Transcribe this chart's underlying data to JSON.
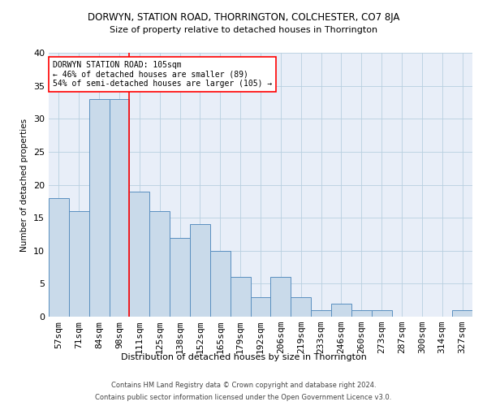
{
  "title": "DORWYN, STATION ROAD, THORRINGTON, COLCHESTER, CO7 8JA",
  "subtitle": "Size of property relative to detached houses in Thorrington",
  "xlabel": "Distribution of detached houses by size in Thorrington",
  "ylabel": "Number of detached properties",
  "categories": [
    "57sqm",
    "71sqm",
    "84sqm",
    "98sqm",
    "111sqm",
    "125sqm",
    "138sqm",
    "152sqm",
    "165sqm",
    "179sqm",
    "192sqm",
    "206sqm",
    "219sqm",
    "233sqm",
    "246sqm",
    "260sqm",
    "273sqm",
    "287sqm",
    "300sqm",
    "314sqm",
    "327sqm"
  ],
  "values": [
    18,
    16,
    33,
    33,
    19,
    16,
    12,
    14,
    10,
    6,
    3,
    6,
    3,
    1,
    2,
    1,
    1,
    0,
    0,
    0,
    1
  ],
  "bar_color": "#c9daea",
  "bar_edge_color": "#5a8fc0",
  "grid_color": "#b8cfe0",
  "background_color": "#e8eef8",
  "vline_x_index": 3.5,
  "vline_color": "red",
  "annotation_text": "DORWYN STATION ROAD: 105sqm\n← 46% of detached houses are smaller (89)\n54% of semi-detached houses are larger (105) →",
  "annotation_box_color": "white",
  "annotation_box_edge": "red",
  "ylim": [
    0,
    40
  ],
  "yticks": [
    0,
    5,
    10,
    15,
    20,
    25,
    30,
    35,
    40
  ],
  "footnote1": "Contains HM Land Registry data © Crown copyright and database right 2024.",
  "footnote2": "Contains public sector information licensed under the Open Government Licence v3.0."
}
